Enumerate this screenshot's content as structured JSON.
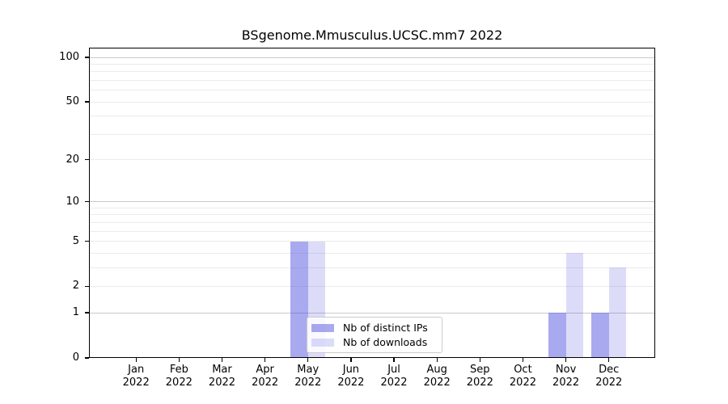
{
  "chart_data": {
    "type": "bar",
    "title": "BSgenome.Mmusculus.UCSC.mm7 2022",
    "categories": [
      {
        "month": "Jan",
        "year": "2022"
      },
      {
        "month": "Feb",
        "year": "2022"
      },
      {
        "month": "Mar",
        "year": "2022"
      },
      {
        "month": "Apr",
        "year": "2022"
      },
      {
        "month": "May",
        "year": "2022"
      },
      {
        "month": "Jun",
        "year": "2022"
      },
      {
        "month": "Jul",
        "year": "2022"
      },
      {
        "month": "Aug",
        "year": "2022"
      },
      {
        "month": "Sep",
        "year": "2022"
      },
      {
        "month": "Oct",
        "year": "2022"
      },
      {
        "month": "Nov",
        "year": "2022"
      },
      {
        "month": "Dec",
        "year": "2022"
      }
    ],
    "series": [
      {
        "name": "Nb of distinct IPs",
        "key": "distinct-ips",
        "color": "rgba(80,80,224,0.49)",
        "values": [
          0,
          0,
          0,
          0,
          5,
          0,
          0,
          0,
          0,
          0,
          1,
          1
        ]
      },
      {
        "name": "Nb of downloads",
        "key": "downloads",
        "color": "rgba(80,80,224,0.20)",
        "values": [
          0,
          0,
          0,
          0,
          5,
          0,
          0,
          0,
          0,
          0,
          4,
          3
        ]
      }
    ],
    "y_axis": {
      "scale": "log1p",
      "tick_values": [
        0,
        1,
        2,
        5,
        10,
        20,
        50,
        100
      ],
      "major_gridlines": [
        1,
        10,
        100
      ],
      "minor_gridlines": [
        3,
        4,
        6,
        7,
        8,
        9,
        30,
        40,
        60,
        70,
        80,
        90
      ],
      "range": [
        0,
        115
      ]
    },
    "legend": {
      "position": "lower center"
    },
    "colors": {
      "bar_base": "#5050e0",
      "major_grid": "#c9c9c9",
      "minor_grid": "#ebebeb"
    }
  }
}
